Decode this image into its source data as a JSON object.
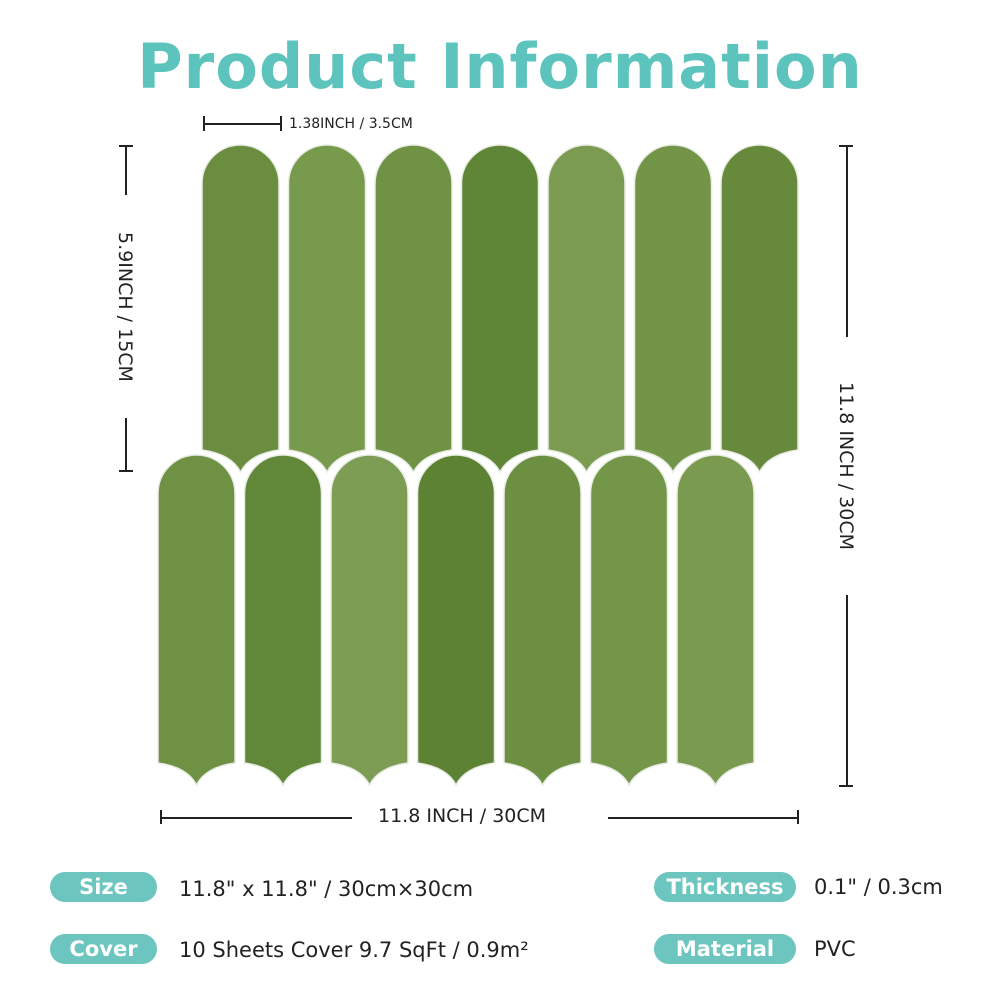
{
  "title": "Product Information",
  "dimensions": {
    "tile_width": "1.38INCH / 3.5CM",
    "tile_height": "5.9INCH / 15CM",
    "sheet_height": "11.8 INCH / 30CM",
    "sheet_width": "11.8 INCH / 30CM"
  },
  "tile_colors": [
    "#6a8d3f",
    "#779a4c",
    "#6f9244",
    "#5f8537",
    "#7a9b50",
    "#729547",
    "#66893c",
    "#6e9143",
    "#618739",
    "#7d9d55",
    "#5d8234",
    "#6c8f41",
    "#749649",
    "#7a9a4f"
  ],
  "specs": [
    {
      "label": "Size",
      "value": "11.8\" x 11.8\" / 30cm×30cm"
    },
    {
      "label": "Thickness",
      "value": "0.1\" / 0.3cm"
    },
    {
      "label": "Cover",
      "value": "10 Sheets Cover 9.7 SqFt / 0.9m²"
    },
    {
      "label": "Material",
      "value": "PVC"
    }
  ],
  "accent_color": "#6cc6bf"
}
